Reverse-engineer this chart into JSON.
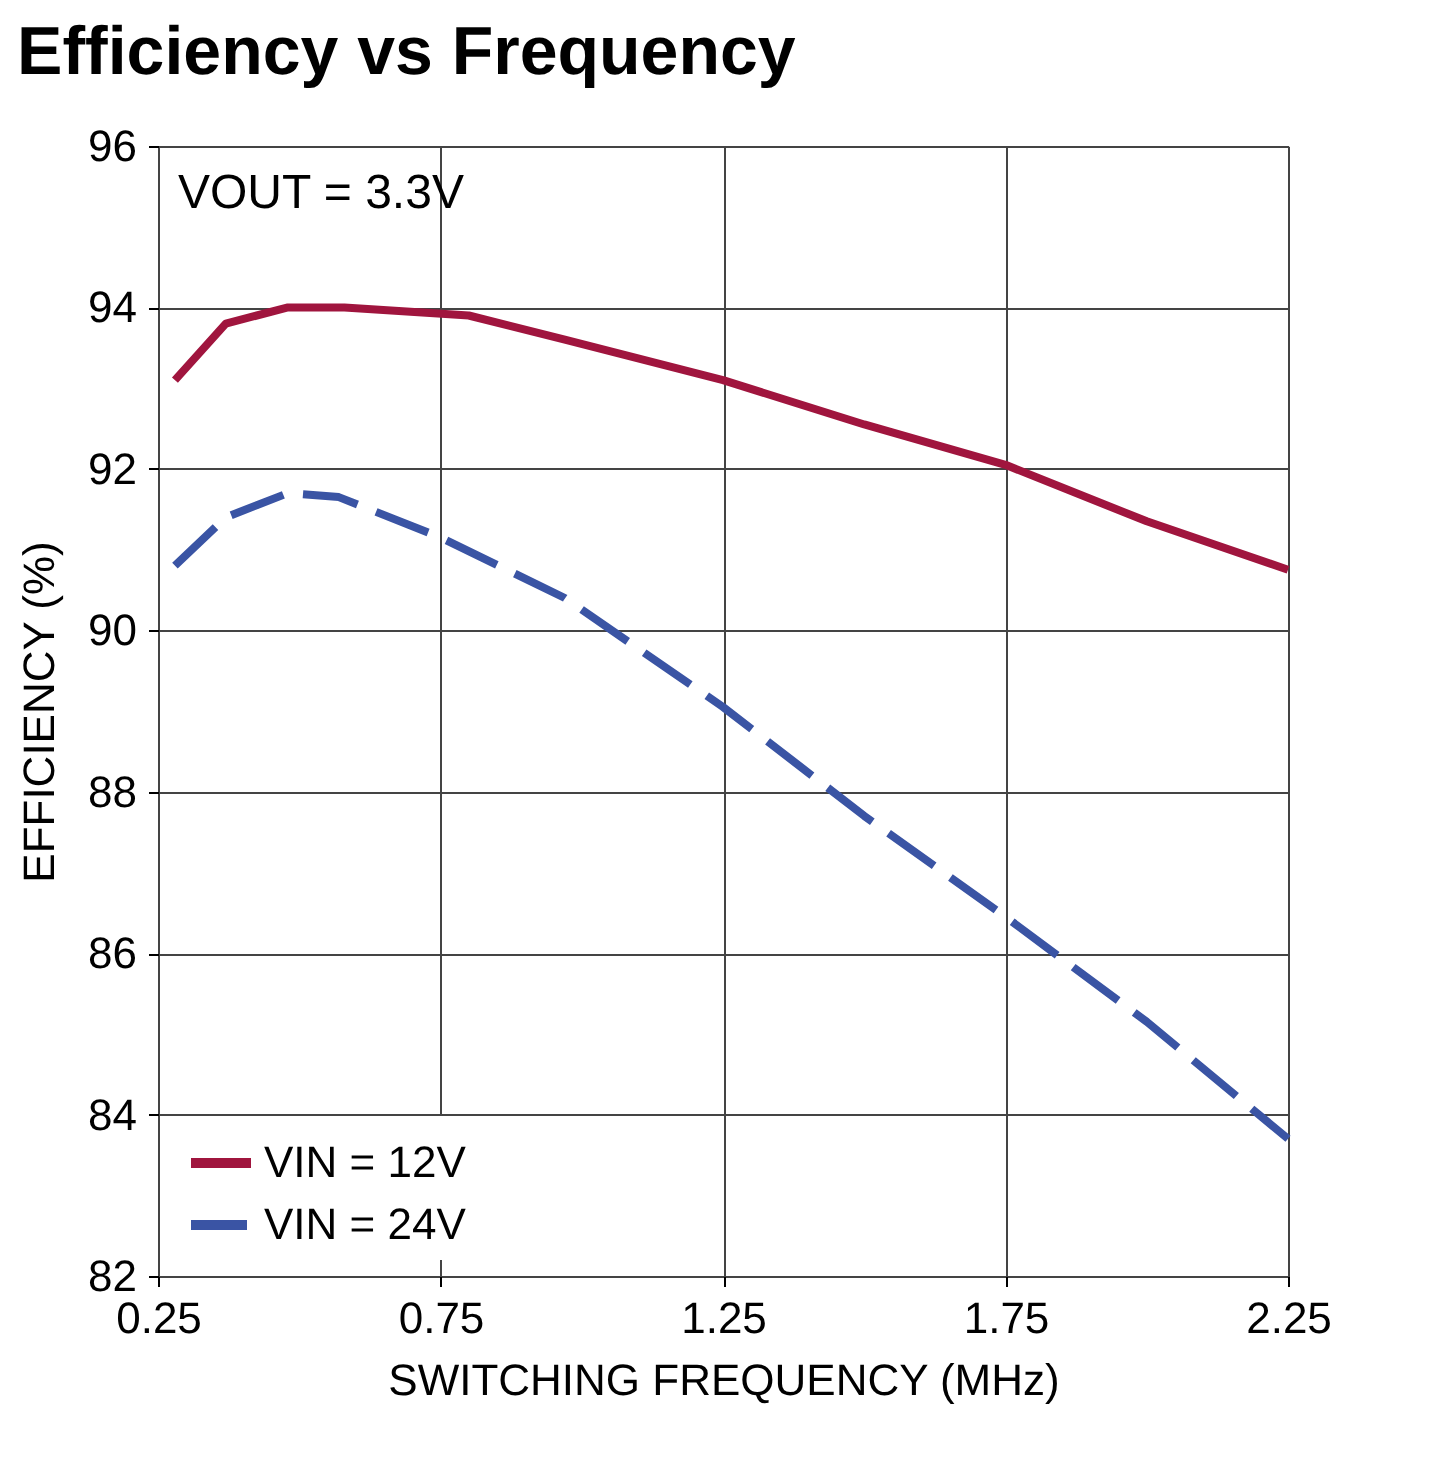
{
  "chart_data": {
    "type": "line",
    "title": "Efficiency vs Frequency",
    "xlabel": "SWITCHING FREQUENCY (MHz)",
    "ylabel": "EFFICIENCY (%)",
    "annotations": [
      "VOUT = 3.3V"
    ],
    "xlim": [
      0.25,
      2.25
    ],
    "xticks": [
      0.25,
      0.75,
      1.25,
      1.75,
      2.25
    ],
    "ylim": [
      82,
      96
    ],
    "yticks": [
      82,
      84,
      86,
      88,
      90,
      92,
      94,
      96
    ],
    "grid": true,
    "legend": "bottom left",
    "series": [
      {
        "name": "VIN = 12V",
        "color": "#a0153e",
        "line_style": "solid",
        "x": [
          0.28,
          0.37,
          0.48,
          0.58,
          0.8,
          0.97,
          1.25,
          1.5,
          1.75,
          2.0,
          2.25
        ],
        "values": [
          93.1,
          93.8,
          94.0,
          94.0,
          93.9,
          93.6,
          93.1,
          92.55,
          92.05,
          91.35,
          90.75
        ]
      },
      {
        "name": "VIN = 24V",
        "color": "#3a54a4",
        "line_style": "dashed",
        "x": [
          0.28,
          0.37,
          0.48,
          0.57,
          0.75,
          0.97,
          1.25,
          1.5,
          1.75,
          2.0,
          2.25
        ],
        "values": [
          90.8,
          91.4,
          91.7,
          91.65,
          91.15,
          90.4,
          89.05,
          87.7,
          86.45,
          85.15,
          83.7
        ]
      }
    ]
  }
}
